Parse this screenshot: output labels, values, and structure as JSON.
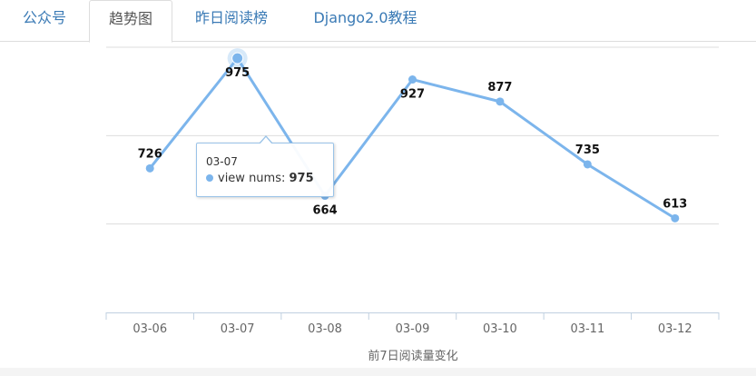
{
  "tabs": [
    {
      "label": "公众号",
      "active": false
    },
    {
      "label": "趋势图",
      "active": true
    },
    {
      "label": "昨日阅读榜",
      "active": false
    },
    {
      "label": "Django2.0教程",
      "active": false
    }
  ],
  "chart_data": {
    "type": "line",
    "categories": [
      "03-06",
      "03-07",
      "03-08",
      "03-09",
      "03-10",
      "03-11",
      "03-12"
    ],
    "series": [
      {
        "name": "view nums",
        "values": [
          726,
          975,
          664,
          927,
          877,
          735,
          613
        ],
        "color": "#7cb5ec"
      }
    ],
    "xlabel": "前7日阅读量变化",
    "ylabel": "",
    "ylim": [
      400,
      1000
    ],
    "grid": true,
    "legend": "none"
  },
  "tooltip": {
    "date": "03-07",
    "series_name": "view nums",
    "separator": ":",
    "value": "975"
  },
  "colors": {
    "series": "#7cb5ec",
    "tab_text": "#3a7ab5",
    "grid": "#dddddd"
  }
}
